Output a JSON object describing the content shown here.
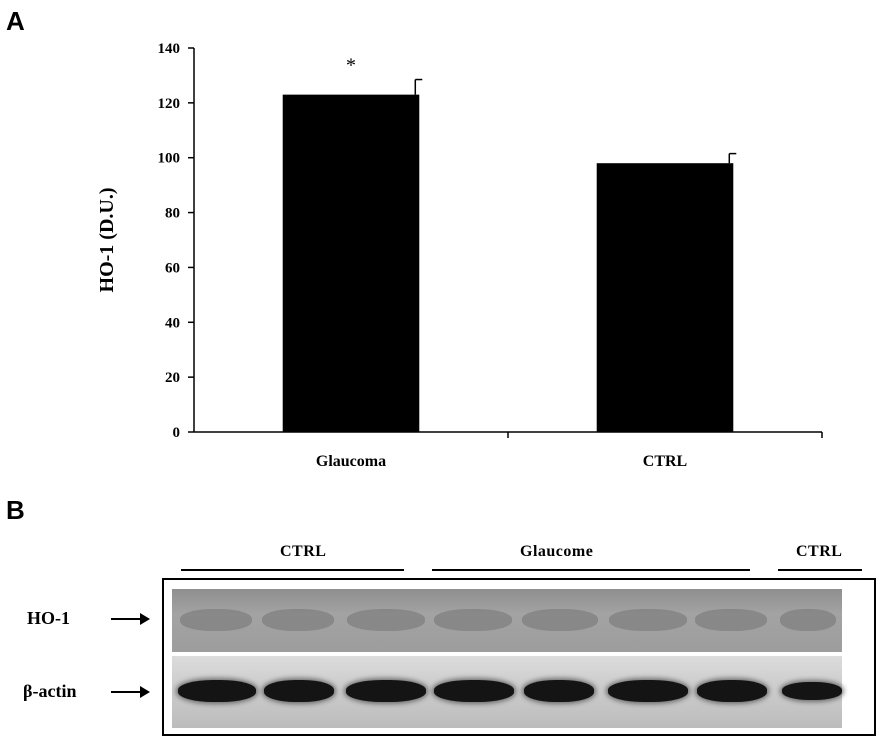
{
  "panels": {
    "a_label": "A",
    "b_label": "B"
  },
  "chart_data": {
    "type": "bar",
    "categories": [
      "Glaucoma",
      "CTRL"
    ],
    "values": [
      123,
      98
    ],
    "errors": [
      5.5,
      3.5
    ],
    "annotations": [
      "*",
      ""
    ],
    "title": "",
    "xlabel": "",
    "ylabel": "HO-1  (D.U.)",
    "ylim": [
      0,
      140
    ],
    "yticks": [
      0,
      20,
      40,
      60,
      80,
      100,
      120,
      140
    ],
    "grid": false,
    "bar_color": "#000000"
  },
  "blot": {
    "groups": [
      {
        "label": "CTRL"
      },
      {
        "label": "Glaucome"
      },
      {
        "label": "CTRL"
      }
    ],
    "rows": [
      {
        "label": "HO-1"
      },
      {
        "label": "β-actin"
      }
    ]
  }
}
